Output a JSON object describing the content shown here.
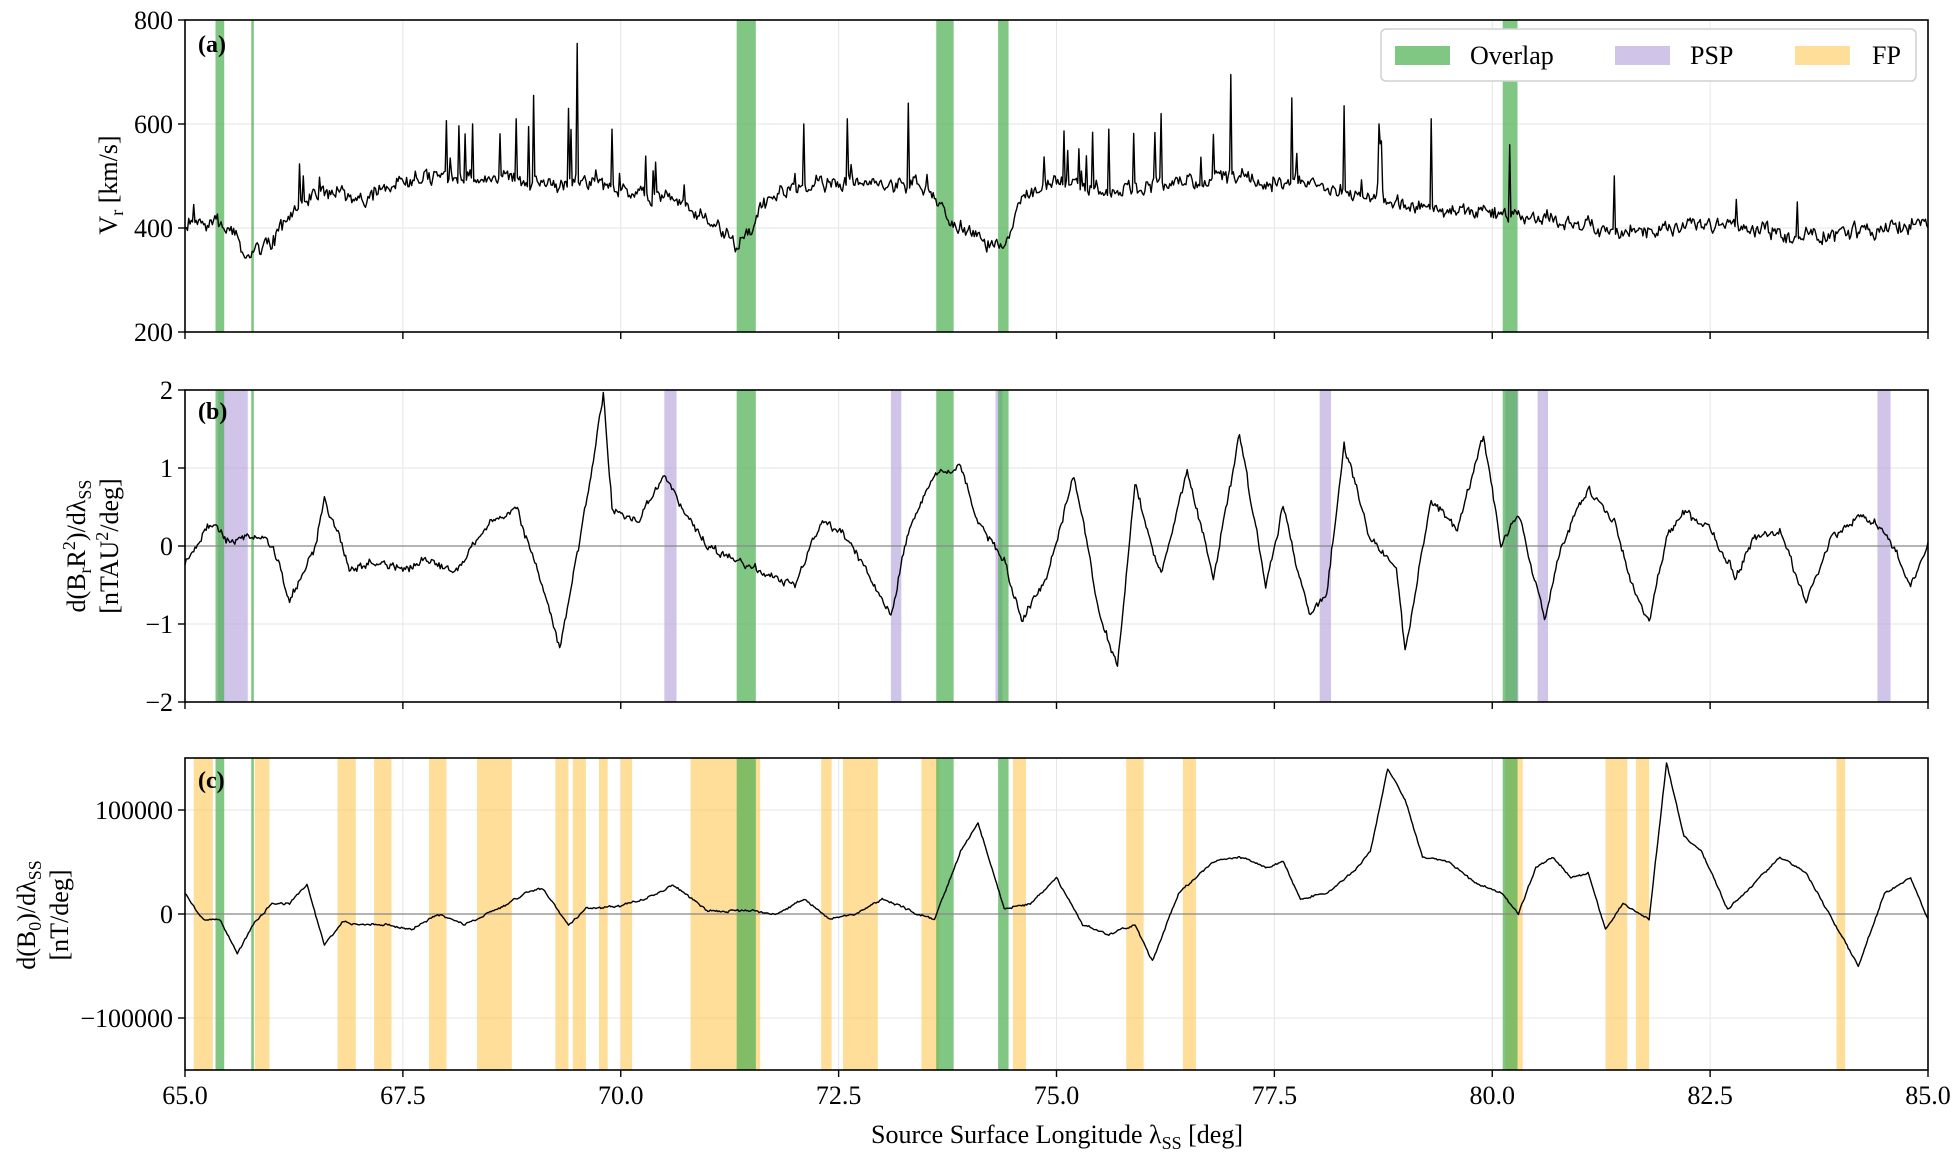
{
  "figure": {
    "xlabel_main": "Source Surface Longitude λ",
    "xlabel_sub": "SS",
    "xlabel_unit": " [deg]",
    "legend": [
      {
        "label": "Overlap",
        "color": "#4caf50"
      },
      {
        "label": "PSP",
        "color": "#b39ddb"
      },
      {
        "label": "FP",
        "color": "#ffc857"
      }
    ]
  },
  "colors": {
    "overlap": "#4caf50",
    "psp": "#b39ddb",
    "fp": "#ffc857",
    "line": "#000000",
    "zero_line": "#888888",
    "grid": "#e6e6e6"
  },
  "chart_data": [
    {
      "id": "a",
      "type": "line",
      "panel_label": "(a)",
      "ylabel_main": "V",
      "ylabel_sub": "r",
      "ylabel_unit": " [km/s]",
      "xlim": [
        65.0,
        85.0
      ],
      "ylim": [
        200,
        800
      ],
      "xticks": [
        65.0,
        67.5,
        70.0,
        72.5,
        75.0,
        77.5,
        80.0,
        82.5,
        85.0
      ],
      "xtick_labels": [
        "65.0",
        "67.5",
        "70.0",
        "72.5",
        "75.0",
        "77.5",
        "80.0",
        "82.5",
        "85.0"
      ],
      "yticks": [
        200,
        400,
        600,
        800
      ],
      "ytick_labels": [
        "200",
        "400",
        "600",
        "800"
      ],
      "zero_line": false,
      "noise": 22,
      "spike_prob": 0.06,
      "spike_amp": 110,
      "seed": 7,
      "baseline": [
        [
          65.0,
          400
        ],
        [
          65.3,
          410
        ],
        [
          65.5,
          400
        ],
        [
          65.7,
          350
        ],
        [
          66.0,
          375
        ],
        [
          66.3,
          440
        ],
        [
          66.6,
          475
        ],
        [
          67.0,
          455
        ],
        [
          67.5,
          490
        ],
        [
          68.0,
          500
        ],
        [
          68.5,
          490
        ],
        [
          69.0,
          490
        ],
        [
          69.5,
          490
        ],
        [
          70.0,
          480
        ],
        [
          70.5,
          460
        ],
        [
          71.0,
          420
        ],
        [
          71.3,
          365
        ],
        [
          71.5,
          400
        ],
        [
          71.7,
          460
        ],
        [
          72.0,
          480
        ],
        [
          72.5,
          490
        ],
        [
          73.0,
          490
        ],
        [
          73.5,
          480
        ],
        [
          73.8,
          410
        ],
        [
          74.1,
          380
        ],
        [
          74.4,
          360
        ],
        [
          74.6,
          460
        ],
        [
          75.0,
          490
        ],
        [
          75.5,
          470
        ],
        [
          76.0,
          480
        ],
        [
          76.5,
          490
        ],
        [
          77.0,
          500
        ],
        [
          77.5,
          490
        ],
        [
          78.0,
          480
        ],
        [
          78.5,
          460
        ],
        [
          79.0,
          440
        ],
        [
          79.5,
          430
        ],
        [
          80.0,
          430
        ],
        [
          80.5,
          420
        ],
        [
          81.0,
          410
        ],
        [
          81.5,
          390
        ],
        [
          82.0,
          395
        ],
        [
          82.5,
          405
        ],
        [
          83.0,
          400
        ],
        [
          83.5,
          380
        ],
        [
          84.0,
          385
        ],
        [
          84.5,
          395
        ],
        [
          85.0,
          410
        ]
      ],
      "series_spikes": [
        [
          65.1,
          445
        ],
        [
          68.3,
          600
        ],
        [
          68.8,
          610
        ],
        [
          69.0,
          655
        ],
        [
          69.4,
          630
        ],
        [
          69.5,
          755
        ],
        [
          69.9,
          590
        ],
        [
          72.1,
          600
        ],
        [
          72.6,
          610
        ],
        [
          73.3,
          640
        ],
        [
          75.6,
          590
        ],
        [
          76.2,
          620
        ],
        [
          76.8,
          580
        ],
        [
          77.0,
          695
        ],
        [
          77.7,
          650
        ],
        [
          78.3,
          635
        ],
        [
          78.7,
          600
        ],
        [
          79.3,
          610
        ],
        [
          80.2,
          560
        ],
        [
          81.4,
          500
        ],
        [
          82.8,
          455
        ],
        [
          83.5,
          450
        ]
      ],
      "overlap": [
        [
          65.35,
          65.45
        ],
        [
          65.76,
          65.79
        ],
        [
          71.33,
          71.55
        ],
        [
          73.62,
          73.82
        ],
        [
          74.33,
          74.45
        ],
        [
          80.12,
          80.29
        ]
      ],
      "psp": [],
      "fp": []
    },
    {
      "id": "b",
      "type": "line",
      "panel_label": "(b)",
      "ylabel_main": "d(B",
      "ylabel_sub1": "r",
      "ylabel_mid": "R",
      "ylabel_sup": "2",
      "ylabel_tail": ")/dλ",
      "ylabel_sub2": "SS",
      "ylabel_line2": "[nTAU",
      "ylabel_line2_sup": "2",
      "ylabel_line2_tail": "/deg]",
      "xlim": [
        65.0,
        85.0
      ],
      "ylim": [
        -2,
        2
      ],
      "xticks": [
        65.0,
        67.5,
        70.0,
        72.5,
        75.0,
        77.5,
        80.0,
        82.5,
        85.0
      ],
      "xtick_labels": [
        "65.0",
        "67.5",
        "70.0",
        "72.5",
        "75.0",
        "77.5",
        "80.0",
        "82.5",
        "85.0"
      ],
      "yticks": [
        -2,
        -1,
        0,
        1,
        2
      ],
      "ytick_labels": [
        "−2",
        "−1",
        "0",
        "1",
        "2"
      ],
      "zero_line": true,
      "noise": 0.08,
      "spike_prob": 0,
      "spike_amp": 0,
      "seed": 19,
      "baseline": [
        [
          65.0,
          -0.2
        ],
        [
          65.3,
          0.3
        ],
        [
          65.5,
          0.05
        ],
        [
          65.8,
          0.15
        ],
        [
          66.0,
          0.0
        ],
        [
          66.2,
          -0.7
        ],
        [
          66.5,
          0.0
        ],
        [
          66.6,
          0.6
        ],
        [
          66.9,
          -0.3
        ],
        [
          67.2,
          -0.2
        ],
        [
          67.5,
          -0.3
        ],
        [
          67.8,
          -0.2
        ],
        [
          68.1,
          -0.3
        ],
        [
          68.5,
          0.3
        ],
        [
          68.8,
          0.5
        ],
        [
          69.1,
          -0.5
        ],
        [
          69.3,
          -1.3
        ],
        [
          69.6,
          0.5
        ],
        [
          69.8,
          1.95
        ],
        [
          69.9,
          0.5
        ],
        [
          70.2,
          0.3
        ],
        [
          70.5,
          0.9
        ],
        [
          70.7,
          0.5
        ],
        [
          71.0,
          0.0
        ],
        [
          71.5,
          -0.3
        ],
        [
          72.0,
          -0.5
        ],
        [
          72.3,
          0.3
        ],
        [
          72.6,
          0.1
        ],
        [
          72.9,
          -0.5
        ],
        [
          73.1,
          -0.9
        ],
        [
          73.3,
          0.2
        ],
        [
          73.6,
          0.9
        ],
        [
          73.9,
          1.05
        ],
        [
          74.1,
          0.3
        ],
        [
          74.4,
          -0.2
        ],
        [
          74.6,
          -0.95
        ],
        [
          74.9,
          -0.4
        ],
        [
          75.2,
          0.9
        ],
        [
          75.5,
          -0.9
        ],
        [
          75.7,
          -1.55
        ],
        [
          75.9,
          0.8
        ],
        [
          76.2,
          -0.4
        ],
        [
          76.5,
          1.0
        ],
        [
          76.8,
          -0.4
        ],
        [
          77.1,
          1.45
        ],
        [
          77.4,
          -0.5
        ],
        [
          77.6,
          0.5
        ],
        [
          77.9,
          -0.9
        ],
        [
          78.1,
          -0.6
        ],
        [
          78.3,
          1.3
        ],
        [
          78.6,
          0.1
        ],
        [
          78.9,
          -0.3
        ],
        [
          79.0,
          -1.35
        ],
        [
          79.3,
          0.6
        ],
        [
          79.6,
          0.2
        ],
        [
          79.9,
          1.4
        ],
        [
          80.1,
          0.0
        ],
        [
          80.3,
          0.4
        ],
        [
          80.6,
          -0.9
        ],
        [
          80.8,
          0.0
        ],
        [
          81.1,
          0.75
        ],
        [
          81.4,
          0.3
        ],
        [
          81.6,
          -0.5
        ],
        [
          81.8,
          -1.0
        ],
        [
          82.0,
          0.1
        ],
        [
          82.2,
          0.45
        ],
        [
          82.5,
          0.2
        ],
        [
          82.8,
          -0.4
        ],
        [
          83.0,
          0.1
        ],
        [
          83.3,
          0.2
        ],
        [
          83.6,
          -0.7
        ],
        [
          83.9,
          0.1
        ],
        [
          84.2,
          0.4
        ],
        [
          84.5,
          0.2
        ],
        [
          84.8,
          -0.5
        ],
        [
          85.0,
          0.05
        ]
      ],
      "series_spikes": [],
      "overlap": [
        [
          65.35,
          65.45
        ],
        [
          65.76,
          65.79
        ],
        [
          71.33,
          71.55
        ],
        [
          73.62,
          73.82
        ],
        [
          74.33,
          74.45
        ],
        [
          80.12,
          80.29
        ]
      ],
      "psp": [
        [
          65.38,
          65.72
        ],
        [
          70.5,
          70.64
        ],
        [
          73.1,
          73.22
        ],
        [
          74.3,
          74.38
        ],
        [
          78.02,
          78.15
        ],
        [
          80.15,
          80.3
        ],
        [
          80.52,
          80.64
        ],
        [
          84.42,
          84.57
        ]
      ],
      "fp": []
    },
    {
      "id": "c",
      "type": "line",
      "panel_label": "(c)",
      "ylabel_main": "d(B",
      "ylabel_sub1": "0",
      "ylabel_tail": ")/dλ",
      "ylabel_sub2": "SS",
      "ylabel_line2": "[nT/deg]",
      "xlim": [
        65.0,
        85.0
      ],
      "ylim": [
        -150000,
        150000
      ],
      "xticks": [
        65.0,
        67.5,
        70.0,
        72.5,
        75.0,
        77.5,
        80.0,
        82.5,
        85.0
      ],
      "xtick_labels": [
        "65.0",
        "67.5",
        "70.0",
        "72.5",
        "75.0",
        "77.5",
        "80.0",
        "82.5",
        "85.0"
      ],
      "yticks": [
        -100000,
        0,
        100000
      ],
      "ytick_labels": [
        "−100000",
        "0",
        "100000"
      ],
      "zero_line": true,
      "noise": 1500,
      "spike_prob": 0,
      "spike_amp": 0,
      "seed": 3,
      "baseline": [
        [
          65.0,
          20000
        ],
        [
          65.2,
          -5000
        ],
        [
          65.4,
          -5000
        ],
        [
          65.6,
          -38000
        ],
        [
          65.8,
          -8000
        ],
        [
          66.0,
          10000
        ],
        [
          66.2,
          10000
        ],
        [
          66.4,
          28000
        ],
        [
          66.6,
          -30000
        ],
        [
          66.8,
          -8000
        ],
        [
          67.0,
          -10000
        ],
        [
          67.3,
          -10000
        ],
        [
          67.6,
          -15000
        ],
        [
          67.9,
          0
        ],
        [
          68.2,
          -10000
        ],
        [
          68.6,
          5000
        ],
        [
          68.9,
          20000
        ],
        [
          69.1,
          25000
        ],
        [
          69.4,
          -10000
        ],
        [
          69.6,
          5000
        ],
        [
          70.0,
          8000
        ],
        [
          70.3,
          15000
        ],
        [
          70.6,
          28000
        ],
        [
          71.0,
          3000
        ],
        [
          71.5,
          3000
        ],
        [
          71.8,
          0
        ],
        [
          72.1,
          15000
        ],
        [
          72.4,
          -5000
        ],
        [
          72.7,
          0
        ],
        [
          73.0,
          15000
        ],
        [
          73.4,
          0
        ],
        [
          73.6,
          -5000
        ],
        [
          73.9,
          60000
        ],
        [
          74.1,
          88000
        ],
        [
          74.4,
          5000
        ],
        [
          74.7,
          10000
        ],
        [
          75.0,
          35000
        ],
        [
          75.3,
          -10000
        ],
        [
          75.6,
          -20000
        ],
        [
          75.9,
          -10000
        ],
        [
          76.1,
          -45000
        ],
        [
          76.4,
          20000
        ],
        [
          76.8,
          50000
        ],
        [
          77.1,
          55000
        ],
        [
          77.4,
          45000
        ],
        [
          77.6,
          50000
        ],
        [
          77.8,
          15000
        ],
        [
          78.1,
          20000
        ],
        [
          78.4,
          40000
        ],
        [
          78.6,
          60000
        ],
        [
          78.8,
          140000
        ],
        [
          79.0,
          110000
        ],
        [
          79.2,
          55000
        ],
        [
          79.5,
          50000
        ],
        [
          79.8,
          30000
        ],
        [
          80.1,
          20000
        ],
        [
          80.3,
          0
        ],
        [
          80.5,
          45000
        ],
        [
          80.7,
          55000
        ],
        [
          80.9,
          35000
        ],
        [
          81.1,
          40000
        ],
        [
          81.3,
          -15000
        ],
        [
          81.5,
          10000
        ],
        [
          81.8,
          -5000
        ],
        [
          82.0,
          145000
        ],
        [
          82.2,
          75000
        ],
        [
          82.4,
          60000
        ],
        [
          82.7,
          5000
        ],
        [
          82.9,
          20000
        ],
        [
          83.3,
          55000
        ],
        [
          83.6,
          40000
        ],
        [
          83.9,
          -5000
        ],
        [
          84.2,
          -50000
        ],
        [
          84.5,
          20000
        ],
        [
          84.8,
          35000
        ],
        [
          85.0,
          -5000
        ]
      ],
      "series_spikes": [],
      "overlap": [
        [
          65.35,
          65.45
        ],
        [
          65.76,
          65.79
        ],
        [
          71.33,
          71.55
        ],
        [
          73.62,
          73.82
        ],
        [
          74.33,
          74.45
        ],
        [
          80.12,
          80.29
        ]
      ],
      "psp": [],
      "fp": [
        [
          65.1,
          65.32
        ],
        [
          65.8,
          65.97
        ],
        [
          66.75,
          66.96
        ],
        [
          67.17,
          67.37
        ],
        [
          67.8,
          68.0
        ],
        [
          68.35,
          68.75
        ],
        [
          69.25,
          69.4
        ],
        [
          69.45,
          69.6
        ],
        [
          69.75,
          69.85
        ],
        [
          70.0,
          70.13
        ],
        [
          70.8,
          71.6
        ],
        [
          72.3,
          72.42
        ],
        [
          72.55,
          72.95
        ],
        [
          73.45,
          73.65
        ],
        [
          74.5,
          74.65
        ],
        [
          75.8,
          76.0
        ],
        [
          76.45,
          76.6
        ],
        [
          80.15,
          80.35
        ],
        [
          81.3,
          81.55
        ],
        [
          81.65,
          81.8
        ],
        [
          83.95,
          84.05
        ]
      ]
    }
  ]
}
